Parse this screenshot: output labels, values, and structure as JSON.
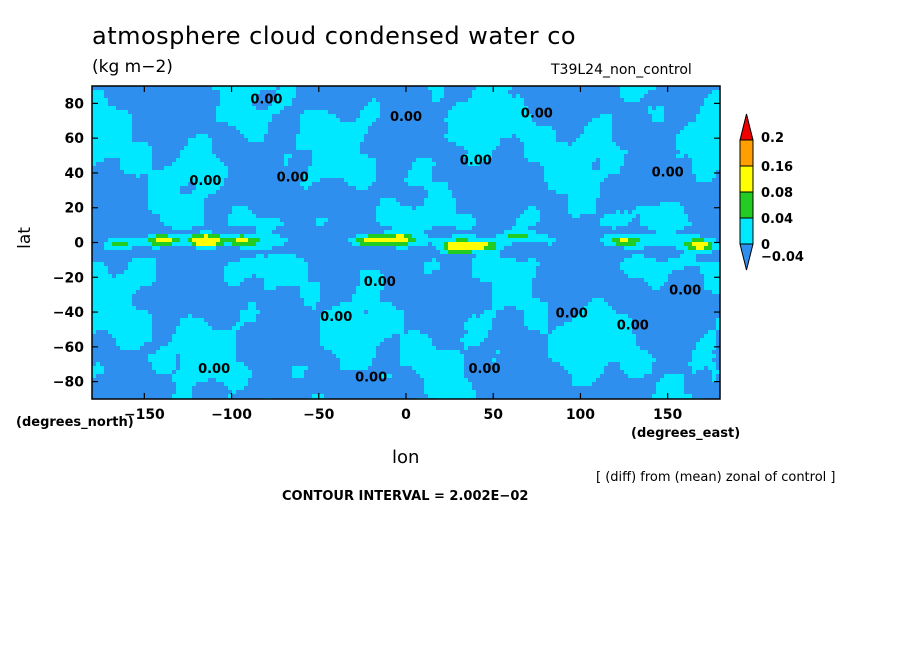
{
  "header": {
    "title": "atmosphere cloud condensed water co",
    "units": "(kg m−2)",
    "experiment": "T39L24_non_control"
  },
  "footer": {
    "note": "[ (diff) from (mean) zonal of control ]",
    "contour_interval": "CONTOUR INTERVAL = 2.002E−02"
  },
  "chart_data": {
    "type": "heatmap",
    "title": "atmosphere cloud condensed water co",
    "xlabel": "lon",
    "ylabel": "lat",
    "x_units": "(degrees_east)",
    "y_units": "(degrees_north)",
    "xlim": [
      -180,
      180
    ],
    "ylim": [
      -90,
      90
    ],
    "x_ticks": [
      -150,
      -100,
      -50,
      0,
      50,
      100,
      150
    ],
    "x_tick_labels": [
      "−150",
      "−100",
      "−50",
      "0",
      "50",
      "100",
      "150"
    ],
    "y_ticks": [
      80,
      60,
      40,
      20,
      0,
      -20,
      -40,
      -60,
      -80
    ],
    "y_tick_labels": [
      "80",
      "60",
      "40",
      "20",
      "0",
      "−20",
      "−40",
      "−60",
      "−80"
    ],
    "colorbar": {
      "levels": [
        -0.04,
        0,
        0.04,
        0.08,
        0.16,
        0.2
      ],
      "labels": [
        "−0.04",
        "0",
        "0.04",
        "0.08",
        "0.16",
        "0.2"
      ],
      "colors": [
        "#2f8fef",
        "#00e8ff",
        "#22cc22",
        "#ffff00",
        "#ffa000",
        "#ee0000"
      ]
    },
    "contour_labels": [
      {
        "text": "0.00",
        "lon": -80,
        "lat": 80
      },
      {
        "text": "0.00",
        "lon": 0,
        "lat": 70
      },
      {
        "text": "0.00",
        "lon": 75,
        "lat": 72
      },
      {
        "text": "0.00",
        "lon": -115,
        "lat": 33
      },
      {
        "text": "0.00",
        "lon": -65,
        "lat": 35
      },
      {
        "text": "0.00",
        "lon": 40,
        "lat": 45
      },
      {
        "text": "0.00",
        "lon": 150,
        "lat": 38
      },
      {
        "text": "0.00",
        "lon": -15,
        "lat": -25
      },
      {
        "text": "0.00",
        "lon": -40,
        "lat": -45
      },
      {
        "text": "0.00",
        "lon": 95,
        "lat": -43
      },
      {
        "text": "0.00",
        "lon": 130,
        "lat": -50
      },
      {
        "text": "0.00",
        "lon": 160,
        "lat": -30
      },
      {
        "text": "0.00",
        "lon": -110,
        "lat": -75
      },
      {
        "text": "0.00",
        "lon": -20,
        "lat": -80
      },
      {
        "text": "0.00",
        "lon": 45,
        "lat": -75
      }
    ],
    "notes": "difference field; broad near-zero (cyan) and slightly negative (blue) regions, strong positive anomalies (green/yellow/orange/red) concentrated along the equator"
  },
  "colors": {
    "neg": "#2f8fef",
    "zero": "#00e8ff",
    "low": "#22cc22",
    "mid": "#ffff00",
    "high": "#ffa000",
    "max": "#ee0000"
  }
}
